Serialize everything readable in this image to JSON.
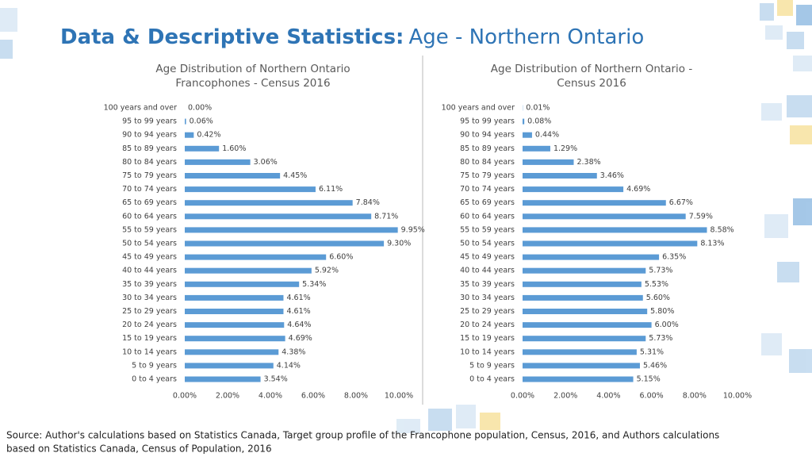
{
  "header": {
    "title_bold": "Data & Descriptive Statistics:",
    "title_rest": "Age - Northern Ontario"
  },
  "chart_data": [
    {
      "type": "barh",
      "title": [
        "Age Distribution of Northern Ontario",
        "Francophones - Census 2016"
      ],
      "categories": [
        "100 years and over",
        "95 to 99 years",
        "90 to 94 years",
        "85 to 89 years",
        "80 to 84 years",
        "75 to 79 years",
        "70 to 74 years",
        "65 to 69 years",
        "60 to 64 years",
        "55 to 59 years",
        "50 to 54 years",
        "45 to 49 years",
        "40 to 44 years",
        "35 to 39 years",
        "30 to 34 years",
        "25 to 29 years",
        "20 to 24 years",
        "15 to 19 years",
        "10 to 14 years",
        "5 to 9 years",
        "0 to 4 years"
      ],
      "values": [
        0.0,
        0.06,
        0.42,
        1.6,
        3.06,
        4.45,
        6.11,
        7.84,
        8.71,
        9.95,
        9.3,
        6.6,
        5.92,
        5.34,
        4.61,
        4.61,
        4.64,
        4.69,
        4.38,
        4.14,
        3.54
      ],
      "value_labels": [
        "0.00%",
        "0.06%",
        "0.42%",
        "1.60%",
        "3.06%",
        "4.45%",
        "6.11%",
        "7.84%",
        "8.71%",
        "9.95%",
        "9.30%",
        "6.60%",
        "5.92%",
        "5.34%",
        "4.61%",
        "4.61%",
        "4.64%",
        "4.69%",
        "4.38%",
        "4.14%",
        "3.54%"
      ],
      "color": "#5b9bd5",
      "xlim": [
        0,
        10
      ],
      "xticks": [
        {
          "value": 0,
          "label": "0.00%"
        },
        {
          "value": 2,
          "label": "2.00%"
        },
        {
          "value": 4,
          "label": "4.00%"
        },
        {
          "value": 6,
          "label": "6.00%"
        },
        {
          "value": 8,
          "label": "8.00%"
        },
        {
          "value": 10,
          "label": "10.00%"
        }
      ]
    },
    {
      "type": "barh",
      "title": [
        "Age Distribution of Northern Ontario -",
        "Census 2016"
      ],
      "categories": [
        "100 years and over",
        "95 to 99 years",
        "90 to 94 years",
        "85 to 89 years",
        "80 to 84 years",
        "75 to 79 years",
        "70 to 74 years",
        "65 to 69 years",
        "60 to 64 years",
        "55 to 59 years",
        "50 to 54 years",
        "45 to 49 years",
        "40 to 44 years",
        "35 to 39 years",
        "30 to 34 years",
        "25 to 29 years",
        "20 to 24 years",
        "15 to 19 years",
        "10 to 14 years",
        "5 to 9 years",
        "0 to 4 years"
      ],
      "values": [
        0.01,
        0.08,
        0.44,
        1.29,
        2.38,
        3.46,
        4.69,
        6.67,
        7.59,
        8.58,
        8.13,
        6.35,
        5.73,
        5.53,
        5.6,
        5.8,
        6.0,
        5.73,
        5.31,
        5.46,
        5.15
      ],
      "value_labels": [
        "0.01%",
        "0.08%",
        "0.44%",
        "1.29%",
        "2.38%",
        "3.46%",
        "4.69%",
        "6.67%",
        "7.59%",
        "8.58%",
        "8.13%",
        "6.35%",
        "5.73%",
        "5.53%",
        "5.60%",
        "5.80%",
        "6.00%",
        "5.73%",
        "5.31%",
        "5.46%",
        "5.15%"
      ],
      "color": "#5b9bd5",
      "xlim": [
        0,
        10
      ],
      "xticks": [
        {
          "value": 0,
          "label": "0.00%"
        },
        {
          "value": 2,
          "label": "2.00%"
        },
        {
          "value": 4,
          "label": "4.00%"
        },
        {
          "value": 6,
          "label": "6.00%"
        },
        {
          "value": 8,
          "label": "8.00%"
        },
        {
          "value": 10,
          "label": "10.00%"
        }
      ]
    }
  ],
  "source": [
    "Source: Author's calculations based on Statistics Canada, Target group profile of the Francophone population, Census, 2016, and Authors calculations",
    "based on Statistics Canada, Census of Population, 2016"
  ]
}
